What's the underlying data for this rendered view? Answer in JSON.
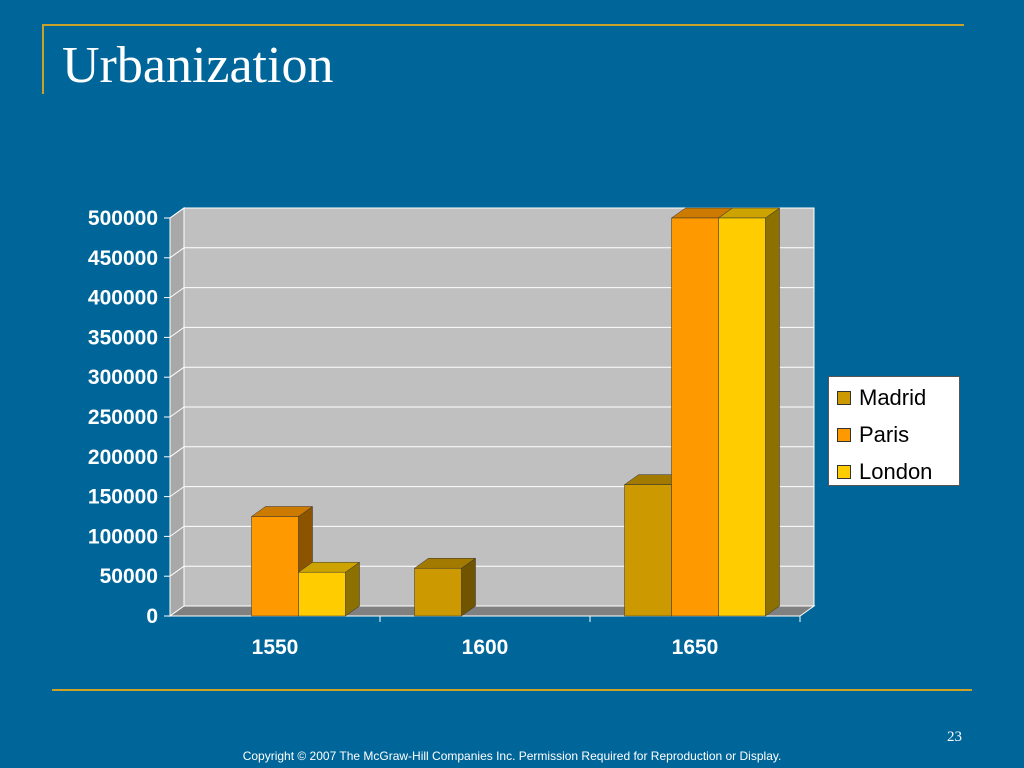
{
  "slide": {
    "title": "Urbanization",
    "page_number": "23",
    "copyright": "Copyright © 2007 The McGraw-Hill Companies Inc. Permission Required for Reproduction or Display."
  },
  "colors": {
    "background": "#006699",
    "frame": "#c9a227",
    "plot_wall": "#c0c0c0",
    "plot_floor": "#808080"
  },
  "chart_data": {
    "type": "bar",
    "title": "",
    "xlabel": "",
    "ylabel": "",
    "categories": [
      "1550",
      "1600",
      "1650"
    ],
    "series": [
      {
        "name": "Madrid",
        "values": [
          0,
          60000,
          165000
        ],
        "color": "#cc9900"
      },
      {
        "name": "Paris",
        "values": [
          125000,
          0,
          500000
        ],
        "color": "#ff9900"
      },
      {
        "name": "London",
        "values": [
          55000,
          0,
          500000
        ],
        "color": "#ffcc00"
      }
    ],
    "ylim": [
      0,
      500000
    ],
    "yticks": [
      "0",
      "50000",
      "100000",
      "150000",
      "200000",
      "250000",
      "300000",
      "350000",
      "400000",
      "450000",
      "500000"
    ],
    "grid": true,
    "legend_position": "right"
  }
}
